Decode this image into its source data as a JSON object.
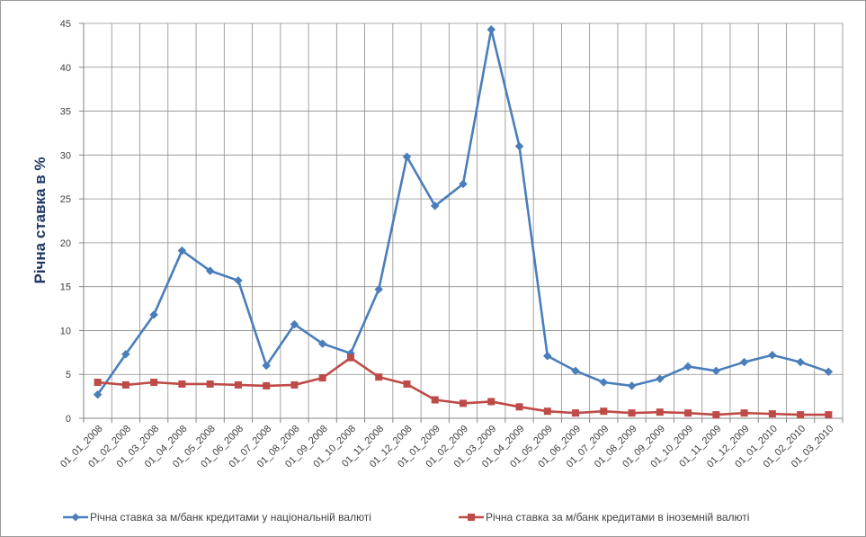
{
  "chart_data": {
    "type": "line",
    "title": "",
    "xlabel": "",
    "ylabel": "Річна ставка в %",
    "ylim": [
      0,
      45
    ],
    "yticks": [
      0,
      5,
      10,
      15,
      20,
      25,
      30,
      35,
      40,
      45
    ],
    "grid": true,
    "legend_position": "bottom",
    "categories": [
      "01_01_2008",
      "01_02_2008",
      "01_03_2008",
      "01_04_2008",
      "01_05_2008",
      "01_06_2008",
      "01_07_2008",
      "01_08_2008",
      "01_09_2008",
      "01_10_2008",
      "01_11_2008",
      "01_12_2008",
      "01_01_2009",
      "01_02_2009",
      "01_03_2009",
      "01_04_2009",
      "01_05_2009",
      "01_06_2009",
      "01_07_2009",
      "01_08_2009",
      "01_09_2009",
      "01_10_2009",
      "01_11_2009",
      "01_12_2009",
      "01_01_2010",
      "01_02_2010",
      "01_03_2010"
    ],
    "series": [
      {
        "name": "Річна ставка за м/банк кредитами у національній валюті",
        "color": "#4a7ebb",
        "marker": "diamond",
        "values": [
          2.7,
          7.3,
          11.8,
          19.1,
          16.8,
          15.7,
          6.0,
          10.7,
          8.5,
          7.4,
          14.7,
          29.8,
          24.2,
          26.7,
          44.3,
          31.0,
          7.1,
          5.4,
          4.1,
          3.7,
          4.5,
          5.9,
          5.4,
          6.4,
          7.2,
          6.4,
          5.3
        ]
      },
      {
        "name": "Річна ставка за м/банк кредитами в іноземній валюті",
        "color": "#be4b48",
        "marker": "square",
        "values": [
          4.1,
          3.8,
          4.1,
          3.9,
          3.9,
          3.8,
          3.7,
          3.8,
          4.6,
          6.9,
          4.7,
          3.9,
          2.1,
          1.7,
          1.9,
          1.3,
          0.8,
          0.6,
          0.8,
          0.6,
          0.7,
          0.6,
          0.4,
          0.6,
          0.5,
          0.4,
          0.4
        ]
      }
    ]
  }
}
